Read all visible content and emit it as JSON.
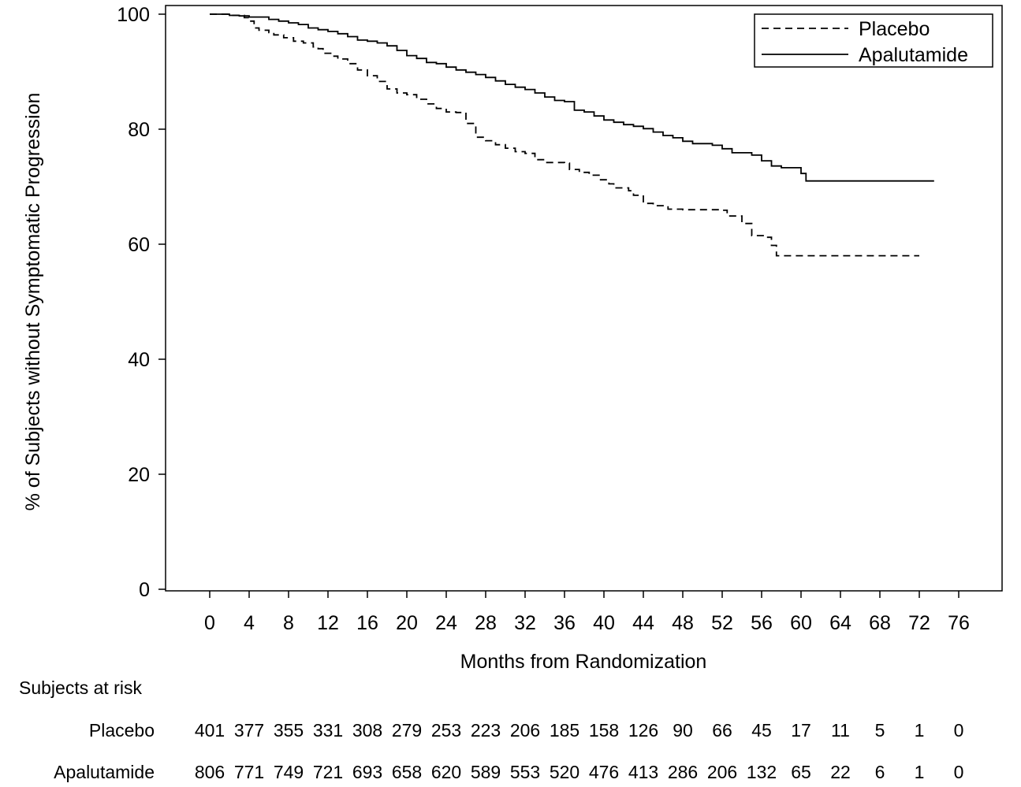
{
  "chart_data": {
    "type": "line",
    "chart_kind": "kaplan-meier",
    "ylabel": "% of Subjects without Symptomatic Progression",
    "xlabel": "Months from Randomization",
    "xlim": [
      -4.5,
      80.5
    ],
    "ylim": [
      0,
      100
    ],
    "x_ticks": [
      0,
      4,
      8,
      12,
      16,
      20,
      24,
      28,
      32,
      36,
      40,
      44,
      48,
      52,
      56,
      60,
      64,
      68,
      72,
      76
    ],
    "y_ticks": [
      0,
      20,
      40,
      60,
      80,
      100
    ],
    "grid": false,
    "legend_position": "top-right",
    "series": [
      {
        "name": "Placebo",
        "line_style": "dashed",
        "color": "#000000",
        "points": [
          [
            0,
            100
          ],
          [
            2,
            99.8
          ],
          [
            3.5,
            99.4
          ],
          [
            4,
            98.8
          ],
          [
            4.5,
            97.6
          ],
          [
            5,
            97.2
          ],
          [
            6,
            96.8
          ],
          [
            6.5,
            96.4
          ],
          [
            7.5,
            95.9
          ],
          [
            8.5,
            95.3
          ],
          [
            9.5,
            95
          ],
          [
            10.5,
            94.3
          ],
          [
            11,
            94.0
          ],
          [
            11.5,
            93.2
          ],
          [
            12.5,
            92.7
          ],
          [
            13,
            92.2
          ],
          [
            14,
            91.4
          ],
          [
            15,
            90.3
          ],
          [
            16,
            89.3
          ],
          [
            17,
            88.3
          ],
          [
            18,
            87.0
          ],
          [
            19,
            86.3
          ],
          [
            20,
            86.0
          ],
          [
            21,
            85.2
          ],
          [
            22,
            84.4
          ],
          [
            23,
            83.6
          ],
          [
            24,
            83.0
          ],
          [
            25,
            82.9
          ],
          [
            26,
            81.0
          ],
          [
            27,
            78.6
          ],
          [
            28,
            78.0
          ],
          [
            29,
            77.3
          ],
          [
            30,
            76.7
          ],
          [
            31,
            76.1
          ],
          [
            32,
            75.8
          ],
          [
            33,
            74.7
          ],
          [
            34,
            74.2
          ],
          [
            36,
            74.1
          ],
          [
            36.5,
            73.0
          ],
          [
            37.5,
            72.5
          ],
          [
            38.5,
            72.0
          ],
          [
            39.5,
            71.2
          ],
          [
            40.5,
            70.5
          ],
          [
            41,
            69.8
          ],
          [
            42.5,
            69.3
          ],
          [
            43,
            68.5
          ],
          [
            44,
            67.1
          ],
          [
            45,
            66.7
          ],
          [
            46.5,
            66.1
          ],
          [
            48,
            66
          ],
          [
            52,
            65.9
          ],
          [
            52.5,
            64.9
          ],
          [
            54,
            63.6
          ],
          [
            55,
            61.5
          ],
          [
            56.5,
            61.2
          ],
          [
            57,
            59.8
          ],
          [
            57.5,
            58.0
          ],
          [
            72,
            58.0
          ]
        ]
      },
      {
        "name": "Apalutamide",
        "line_style": "solid",
        "color": "#000000",
        "points": [
          [
            0,
            100
          ],
          [
            2,
            99.8
          ],
          [
            3,
            99.7
          ],
          [
            4,
            99.5
          ],
          [
            6,
            99.1
          ],
          [
            7,
            98.8
          ],
          [
            8,
            98.5
          ],
          [
            9,
            98.2
          ],
          [
            10,
            97.6
          ],
          [
            11,
            97.3
          ],
          [
            12,
            97.0
          ],
          [
            13,
            96.6
          ],
          [
            14,
            96.1
          ],
          [
            15,
            95.5
          ],
          [
            16,
            95.3
          ],
          [
            17,
            95.0
          ],
          [
            18,
            94.5
          ],
          [
            19,
            93.7
          ],
          [
            20,
            92.8
          ],
          [
            21,
            92.3
          ],
          [
            22,
            91.6
          ],
          [
            23,
            91.4
          ],
          [
            24,
            90.8
          ],
          [
            25,
            90.3
          ],
          [
            26,
            89.9
          ],
          [
            27,
            89.5
          ],
          [
            28,
            89.0
          ],
          [
            29,
            88.4
          ],
          [
            30,
            87.8
          ],
          [
            31,
            87.3
          ],
          [
            32,
            86.9
          ],
          [
            33,
            86.3
          ],
          [
            34,
            85.6
          ],
          [
            35,
            85.0
          ],
          [
            36,
            84.8
          ],
          [
            37,
            83.3
          ],
          [
            38,
            83.0
          ],
          [
            39,
            82.3
          ],
          [
            40,
            81.6
          ],
          [
            41,
            81.2
          ],
          [
            42,
            80.8
          ],
          [
            43,
            80.5
          ],
          [
            44,
            80.1
          ],
          [
            45,
            79.5
          ],
          [
            46,
            78.9
          ],
          [
            47,
            78.5
          ],
          [
            48,
            77.9
          ],
          [
            49,
            77.5
          ],
          [
            51,
            77.2
          ],
          [
            52,
            76.6
          ],
          [
            53,
            75.9
          ],
          [
            55,
            75.5
          ],
          [
            56,
            74.5
          ],
          [
            57,
            73.6
          ],
          [
            58,
            73.3
          ],
          [
            60,
            72.3
          ],
          [
            60.5,
            71.0
          ],
          [
            73.5,
            71.0
          ]
        ]
      }
    ],
    "risk_table": {
      "title": "Subjects at risk",
      "x_positions": [
        0,
        4,
        8,
        12,
        16,
        20,
        24,
        28,
        32,
        36,
        40,
        44,
        48,
        52,
        56,
        60,
        64,
        68,
        72,
        76
      ],
      "rows": [
        {
          "label": "Placebo",
          "values": [
            "401",
            "377",
            "355",
            "331",
            "308",
            "279",
            "253",
            "223",
            "206",
            "185",
            "158",
            "126",
            "90",
            "66",
            "45",
            "17",
            "11",
            "5",
            "1",
            "0"
          ]
        },
        {
          "label": "Apalutamide",
          "values": [
            "806",
            "771",
            "749",
            "721",
            "693",
            "658",
            "620",
            "589",
            "553",
            "520",
            "476",
            "413",
            "286",
            "206",
            "132",
            "65",
            "22",
            "6",
            "1",
            "0"
          ]
        }
      ]
    }
  }
}
